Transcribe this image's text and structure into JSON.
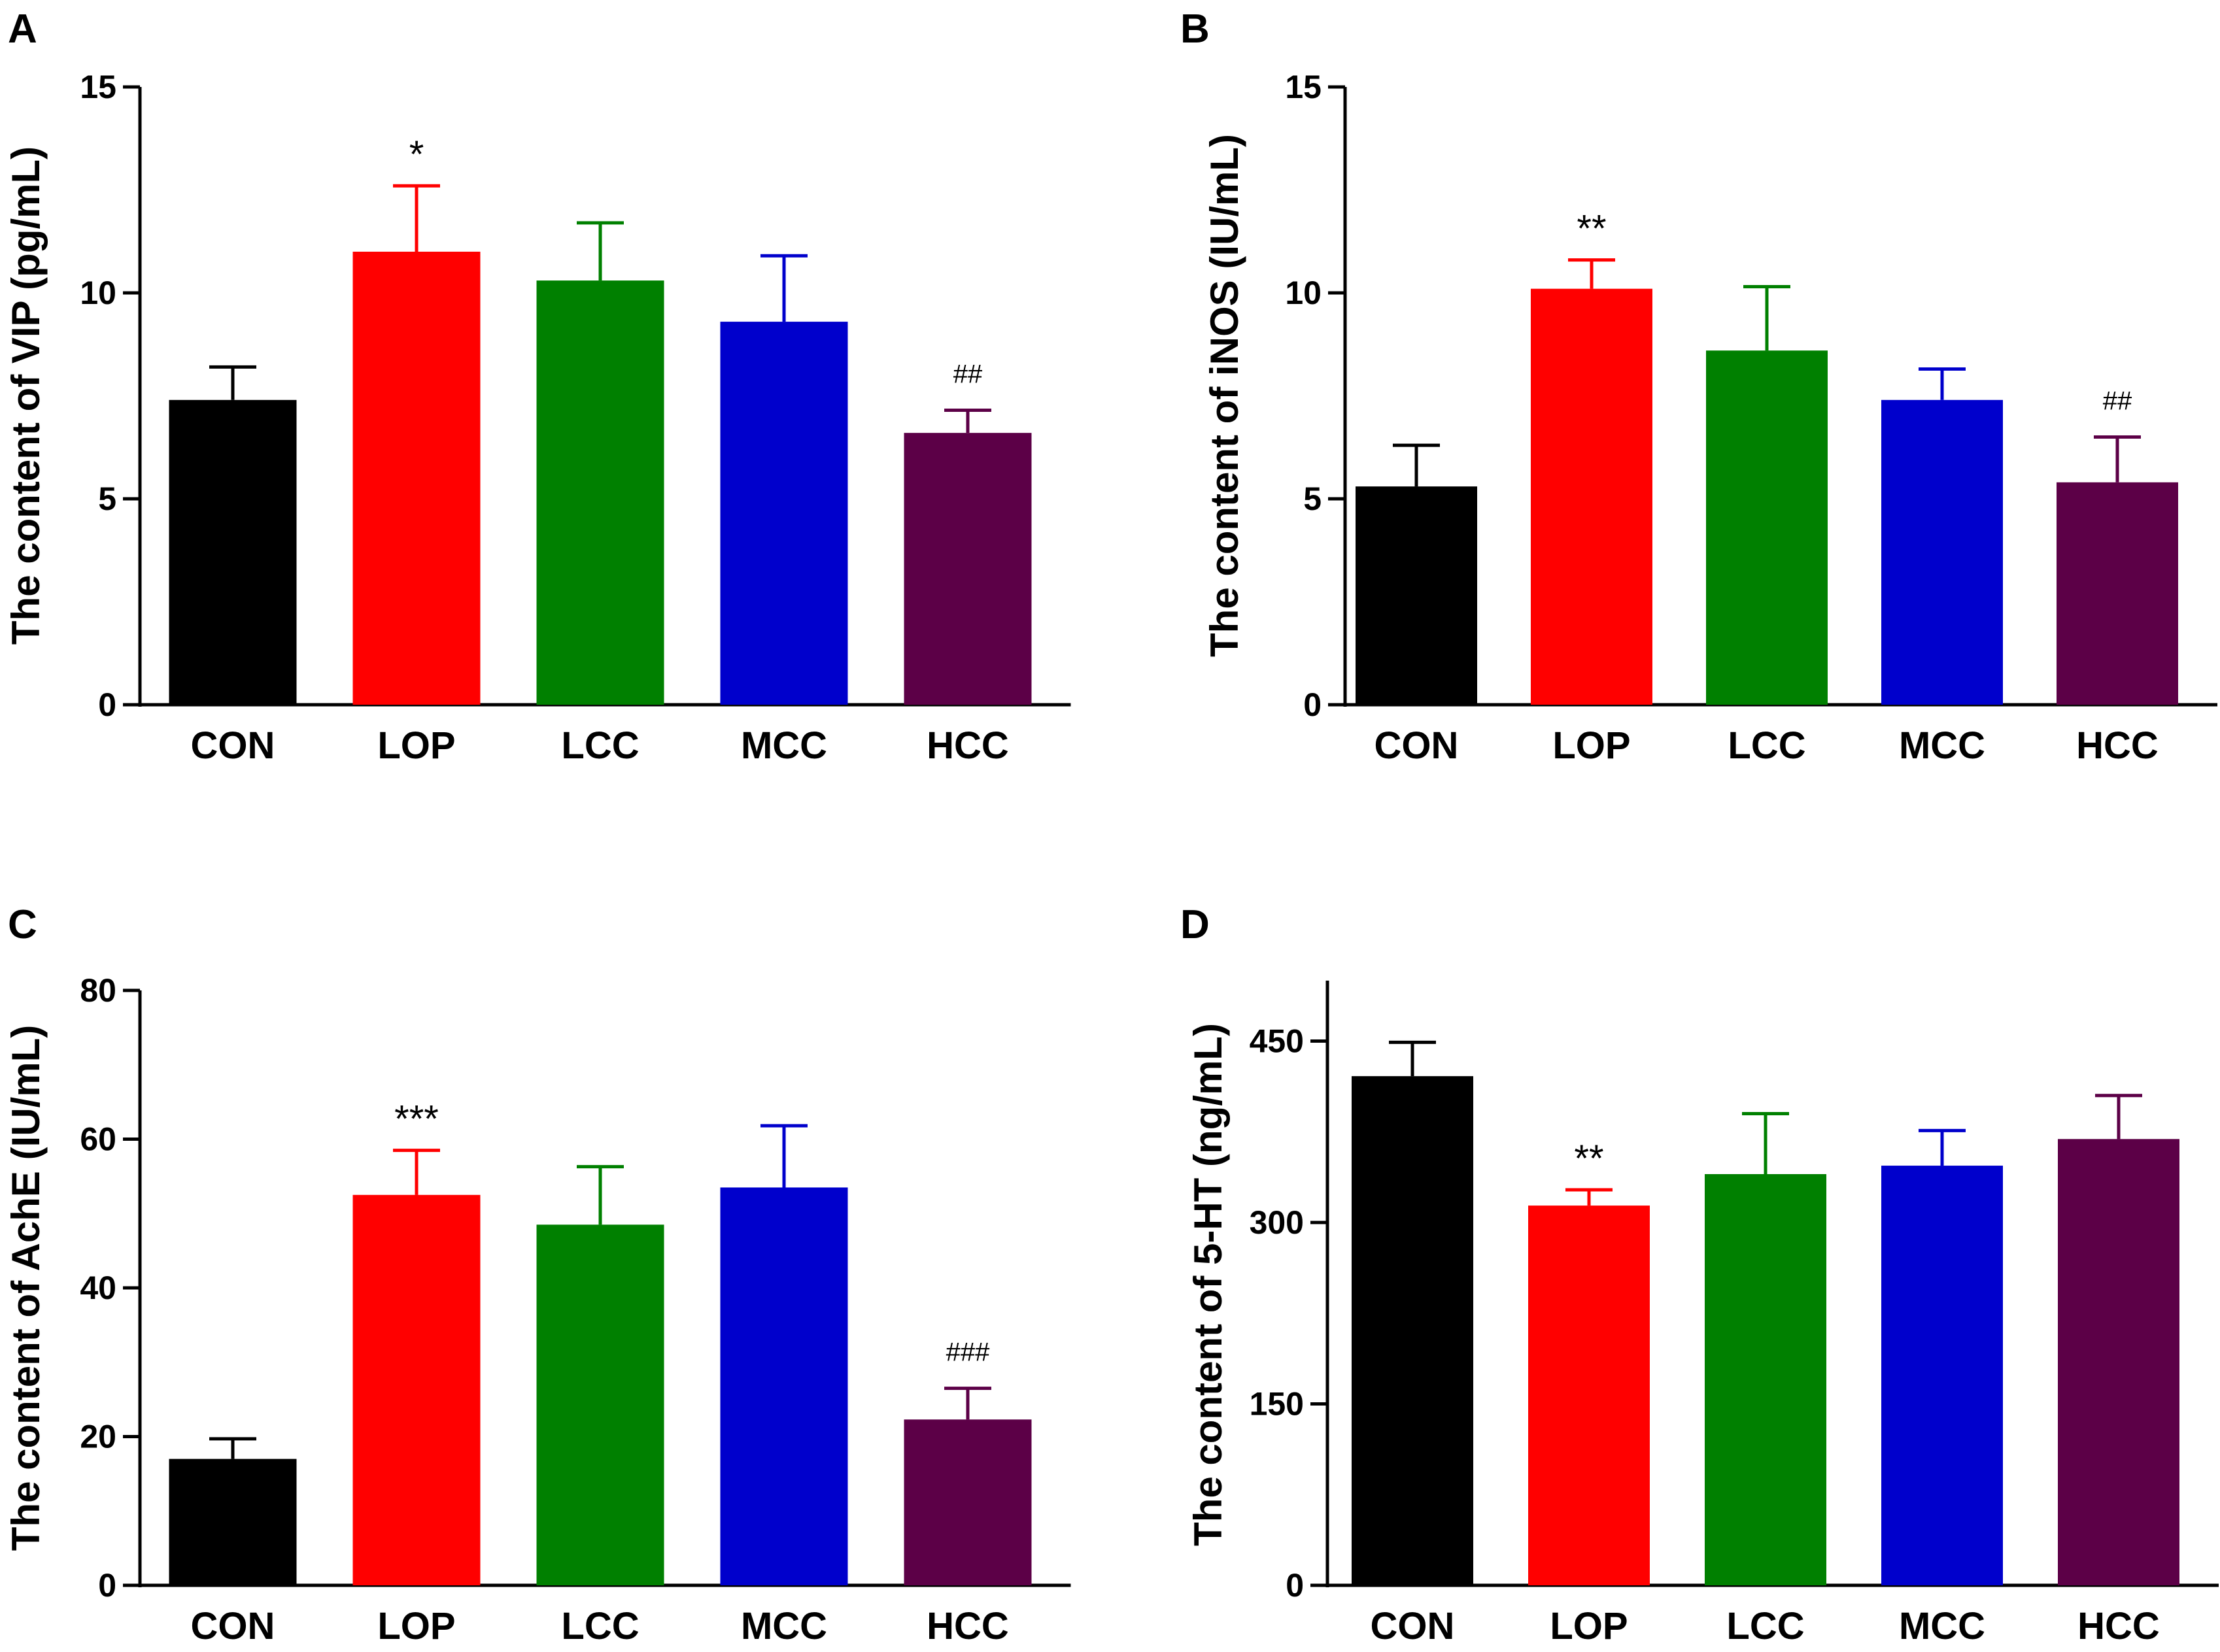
{
  "chart_data": [
    {
      "panel": "A",
      "type": "bar",
      "categories": [
        "CON",
        "LOP",
        "LCC",
        "MCC",
        "HCC"
      ],
      "values": [
        7.4,
        11.0,
        10.3,
        9.3,
        6.6
      ],
      "errors": [
        0.8,
        1.6,
        1.4,
        1.6,
        0.55
      ],
      "annotations": [
        "",
        "*",
        "",
        "",
        "##"
      ],
      "colors": [
        "#000000",
        "#ff0000",
        "#008000",
        "#0000cc",
        "#5c0047"
      ],
      "ylabel": "The content of VIP (pg/mL)",
      "xlabel": "",
      "ylim": [
        0,
        15
      ],
      "yticks": [
        0,
        5,
        10,
        15
      ],
      "ytick_labels": [
        "0",
        "5",
        "10",
        "15"
      ]
    },
    {
      "panel": "B",
      "type": "bar",
      "categories": [
        "CON",
        "LOP",
        "LCC",
        "MCC",
        "HCC"
      ],
      "values": [
        5.3,
        10.1,
        8.6,
        7.4,
        5.4
      ],
      "errors": [
        1.0,
        0.7,
        1.55,
        0.75,
        1.1
      ],
      "annotations": [
        "",
        "**",
        "",
        "",
        "##"
      ],
      "colors": [
        "#000000",
        "#ff0000",
        "#008000",
        "#0000cc",
        "#5c0047"
      ],
      "ylabel": "The content of iNOS (IU/mL)",
      "xlabel": "",
      "ylim": [
        0,
        15
      ],
      "yticks": [
        0,
        5,
        10,
        15
      ],
      "ytick_labels": [
        "0",
        "5",
        "10",
        "15"
      ]
    },
    {
      "panel": "C",
      "type": "bar",
      "categories": [
        "CON",
        "LOP",
        "LCC",
        "MCC",
        "HCC"
      ],
      "values": [
        17,
        52.5,
        48.5,
        53.5,
        22.3
      ],
      "errors": [
        2.7,
        6.0,
        7.8,
        8.3,
        4.2
      ],
      "annotations": [
        "",
        "***",
        "",
        "",
        "###"
      ],
      "colors": [
        "#000000",
        "#ff0000",
        "#008000",
        "#0000cc",
        "#5c0047"
      ],
      "ylabel": "The content of AchE (IU/mL)",
      "xlabel": "",
      "ylim": [
        0,
        80
      ],
      "yticks": [
        0,
        20,
        40,
        60,
        80
      ],
      "ytick_labels": [
        "0",
        "20",
        "40",
        "60",
        "80"
      ]
    },
    {
      "panel": "D",
      "type": "bar",
      "categories": [
        "CON",
        "LOP",
        "LCC",
        "MCC",
        "HCC"
      ],
      "values": [
        421,
        314,
        340,
        347,
        369
      ],
      "errors": [
        28,
        13,
        50,
        29,
        36
      ],
      "annotations": [
        "",
        "**",
        "",
        "",
        ""
      ],
      "colors": [
        "#000000",
        "#ff0000",
        "#008000",
        "#0000cc",
        "#5c0047"
      ],
      "ylabel": "The content of 5-HT (ng/mL)",
      "xlabel": "",
      "ylim": [
        0,
        500
      ],
      "yticks": [
        0,
        150,
        300,
        450
      ],
      "ytick_labels": [
        "0",
        "150",
        "300",
        "450"
      ]
    }
  ]
}
